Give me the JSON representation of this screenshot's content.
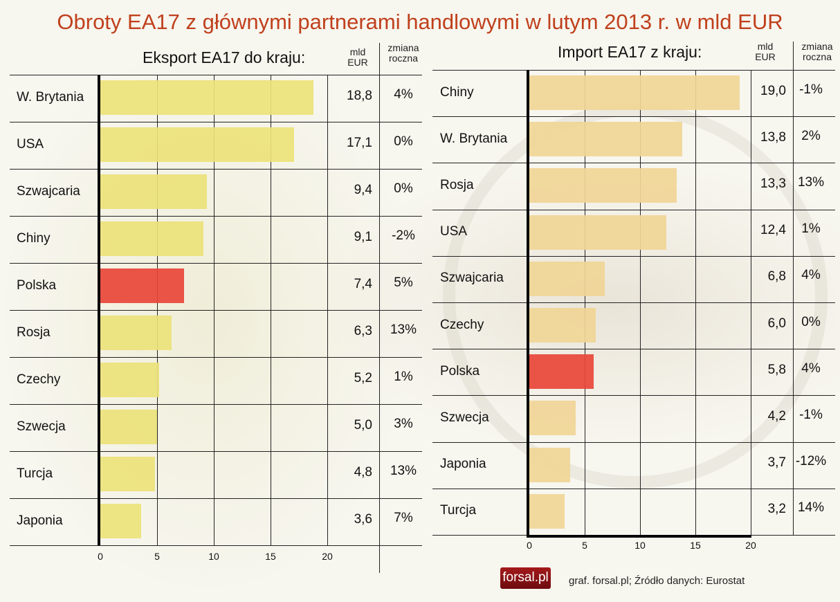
{
  "title": "Obroty EA17 z głównymi partnerami handlowymi w lutym 2013 r. w mld EUR",
  "colors": {
    "normal_export": "#ece27a",
    "normal_import": "#f0d596",
    "highlight": "#e8473a",
    "title": "#c0401c"
  },
  "chart_data": [
    {
      "type": "bar",
      "title": "Eksport EA17 do kraju:",
      "value_header": [
        "mld",
        "EUR"
      ],
      "change_header": [
        "zmiana",
        "roczna"
      ],
      "categories": [
        "W. Brytania",
        "USA",
        "Szwajcaria",
        "Chiny",
        "Polska",
        "Rosja",
        "Czechy",
        "Szwecja",
        "Turcja",
        "Japonia"
      ],
      "values": [
        18.8,
        17.1,
        9.4,
        9.1,
        7.4,
        6.3,
        5.2,
        5.0,
        4.8,
        3.6
      ],
      "value_labels": [
        "18,8",
        "17,1",
        "9,4",
        "9,1",
        "7,4",
        "6,3",
        "5,2",
        "5,0",
        "4,8",
        "3,6"
      ],
      "changes": [
        "4%",
        "0%",
        "0%",
        "-2%",
        "5%",
        "13%",
        "1%",
        "3%",
        "13%",
        "7%"
      ],
      "highlight": "Polska",
      "xlim": [
        0,
        20
      ],
      "xticks": [
        "0",
        "5",
        "10",
        "15",
        "20"
      ]
    },
    {
      "type": "bar",
      "title": "Import EA17 z kraju:",
      "value_header": [
        "mld",
        "EUR"
      ],
      "change_header": [
        "zmiana",
        "roczna"
      ],
      "categories": [
        "Chiny",
        "W. Brytania",
        "Rosja",
        "USA",
        "Szwajcaria",
        "Czechy",
        "Polska",
        "Szwecja",
        "Japonia",
        "Turcja"
      ],
      "values": [
        19.0,
        13.8,
        13.3,
        12.4,
        6.8,
        6.0,
        5.8,
        4.2,
        3.7,
        3.2
      ],
      "value_labels": [
        "19,0",
        "13,8",
        "13,3",
        "12,4",
        "6,8",
        "6,0",
        "5,8",
        "4,2",
        "3,7",
        "3,2"
      ],
      "changes": [
        "-1%",
        "2%",
        "13%",
        "1%",
        "4%",
        "0%",
        "4%",
        "-1%",
        "-12%",
        "14%"
      ],
      "highlight": "Polska",
      "xlim": [
        0,
        20
      ],
      "xticks": [
        "0",
        "5",
        "10",
        "15",
        "20"
      ]
    }
  ],
  "footer": {
    "logo": "forsal.pl",
    "source": "graf. forsal.pl; Źródło danych: Eurostat"
  }
}
